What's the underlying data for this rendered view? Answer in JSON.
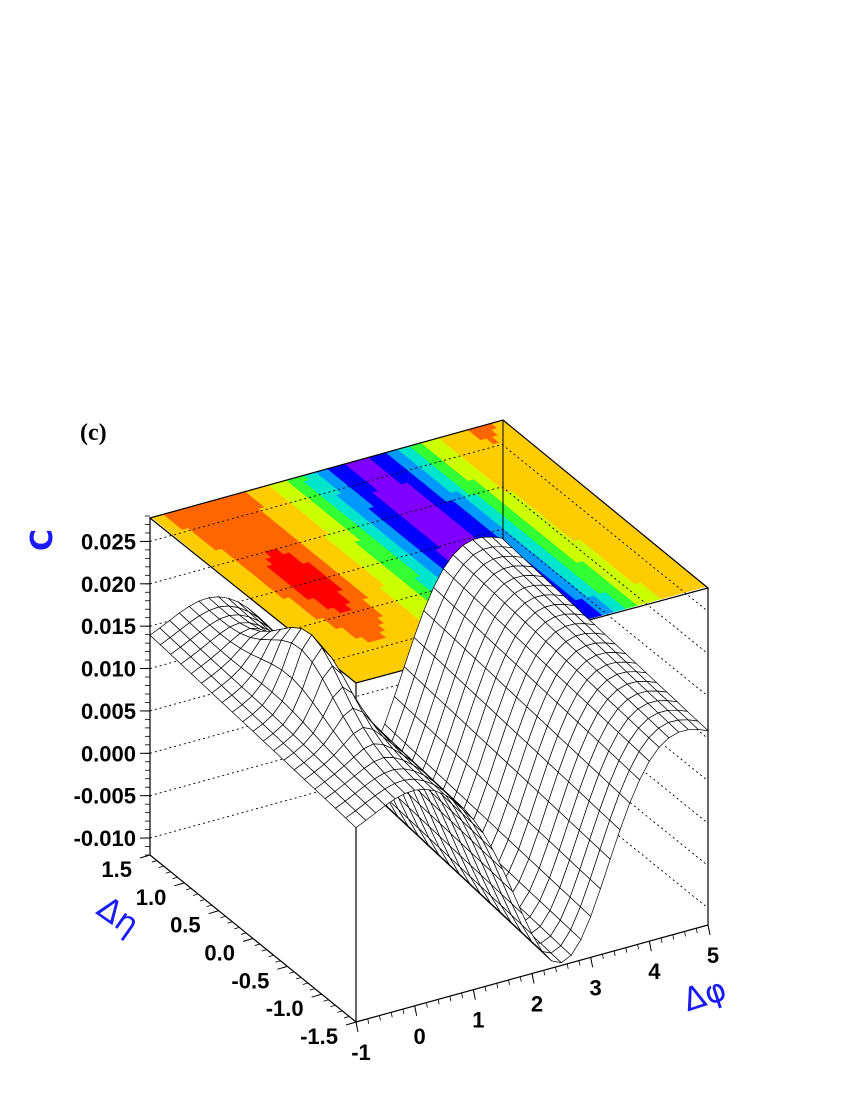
{
  "panel_label": "(c)",
  "chart_data": {
    "type": "surface3d",
    "title": "",
    "panel_label": "(c)",
    "xlabel": "Δφ",
    "ylabel": "Δη",
    "zlabel": "C",
    "xlim": [
      -1,
      5
    ],
    "ylim": [
      -1.5,
      1.5
    ],
    "zlim": [
      -0.012,
      0.028
    ],
    "x_ticks": [
      "-1",
      "0",
      "1",
      "2",
      "3",
      "4",
      "5"
    ],
    "y_ticks": [
      "1.5",
      "1.0",
      "0.5",
      "0.0",
      "-0.5",
      "-1.0",
      "-1.5"
    ],
    "z_ticks": [
      "0.025",
      "0.020",
      "0.015",
      "0.010",
      "0.005",
      "0.000",
      "-0.005",
      "-0.010"
    ],
    "grid": true,
    "contour_projection": "top",
    "colormap": [
      "#7f00ff",
      "#0000ff",
      "#0099ff",
      "#00e6cc",
      "#33ff33",
      "#ccff00",
      "#ffcc00",
      "#ff6600",
      "#ff0000"
    ],
    "surface_profile": {
      "description_x": "Δφ",
      "x": [
        -1.0,
        -0.5,
        0.0,
        0.5,
        1.0,
        1.5,
        2.0,
        2.5,
        3.0,
        3.5,
        4.0,
        4.5,
        5.0
      ],
      "near_side_peak": {
        "x": 0.0,
        "y": 0.0,
        "z": 0.02
      },
      "away_side_trough": {
        "x": 2.5,
        "z": -0.01
      },
      "edge_level": 0.011
    }
  }
}
